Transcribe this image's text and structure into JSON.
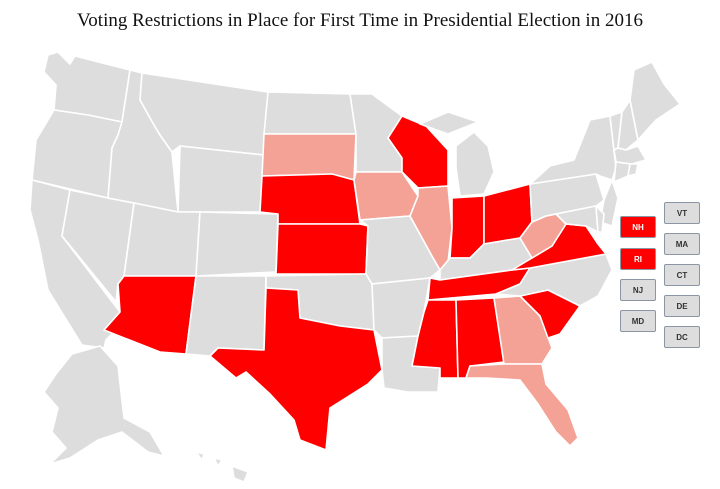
{
  "title": "Voting Restrictions in Place for First Time in Presidential Election in 2016",
  "colors": {
    "new_restriction": "#ff0000",
    "partial_restriction": "#f4a295",
    "none": "#dddddd",
    "border": "#ffffff",
    "box_border": "#8a96a3"
  },
  "legend_note": "",
  "small_states": [
    {
      "abbr": "NH",
      "status": "new_restriction"
    },
    {
      "abbr": "RI",
      "status": "new_restriction"
    },
    {
      "abbr": "NJ",
      "status": "none"
    },
    {
      "abbr": "MD",
      "status": "none"
    },
    {
      "abbr": "VT",
      "status": "none"
    },
    {
      "abbr": "MA",
      "status": "none"
    },
    {
      "abbr": "CT",
      "status": "none"
    },
    {
      "abbr": "DE",
      "status": "none"
    },
    {
      "abbr": "DC",
      "status": "none"
    }
  ],
  "states": [
    {
      "abbr": "WA",
      "status": "none"
    },
    {
      "abbr": "OR",
      "status": "none"
    },
    {
      "abbr": "CA",
      "status": "none"
    },
    {
      "abbr": "NV",
      "status": "none"
    },
    {
      "abbr": "ID",
      "status": "none"
    },
    {
      "abbr": "MT",
      "status": "none"
    },
    {
      "abbr": "WY",
      "status": "none"
    },
    {
      "abbr": "UT",
      "status": "none"
    },
    {
      "abbr": "CO",
      "status": "none"
    },
    {
      "abbr": "AZ",
      "status": "new_restriction"
    },
    {
      "abbr": "NM",
      "status": "none"
    },
    {
      "abbr": "ND",
      "status": "none"
    },
    {
      "abbr": "SD",
      "status": "partial_restriction"
    },
    {
      "abbr": "NE",
      "status": "new_restriction"
    },
    {
      "abbr": "KS",
      "status": "new_restriction"
    },
    {
      "abbr": "OK",
      "status": "none"
    },
    {
      "abbr": "TX",
      "status": "new_restriction"
    },
    {
      "abbr": "MN",
      "status": "none"
    },
    {
      "abbr": "IA",
      "status": "partial_restriction"
    },
    {
      "abbr": "MO",
      "status": "none"
    },
    {
      "abbr": "AR",
      "status": "none"
    },
    {
      "abbr": "LA",
      "status": "none"
    },
    {
      "abbr": "WI",
      "status": "new_restriction"
    },
    {
      "abbr": "IL",
      "status": "partial_restriction"
    },
    {
      "abbr": "MI",
      "status": "none"
    },
    {
      "abbr": "IN",
      "status": "new_restriction"
    },
    {
      "abbr": "OH",
      "status": "new_restriction"
    },
    {
      "abbr": "KY",
      "status": "none"
    },
    {
      "abbr": "TN",
      "status": "new_restriction"
    },
    {
      "abbr": "MS",
      "status": "new_restriction"
    },
    {
      "abbr": "AL",
      "status": "new_restriction"
    },
    {
      "abbr": "GA",
      "status": "partial_restriction"
    },
    {
      "abbr": "FL",
      "status": "partial_restriction"
    },
    {
      "abbr": "SC",
      "status": "new_restriction"
    },
    {
      "abbr": "NC",
      "status": "none"
    },
    {
      "abbr": "VA",
      "status": "new_restriction"
    },
    {
      "abbr": "WV",
      "status": "partial_restriction"
    },
    {
      "abbr": "PA",
      "status": "none"
    },
    {
      "abbr": "NY",
      "status": "none"
    },
    {
      "abbr": "ME",
      "status": "none"
    },
    {
      "abbr": "AK",
      "status": "none"
    },
    {
      "abbr": "HI",
      "status": "none"
    }
  ]
}
